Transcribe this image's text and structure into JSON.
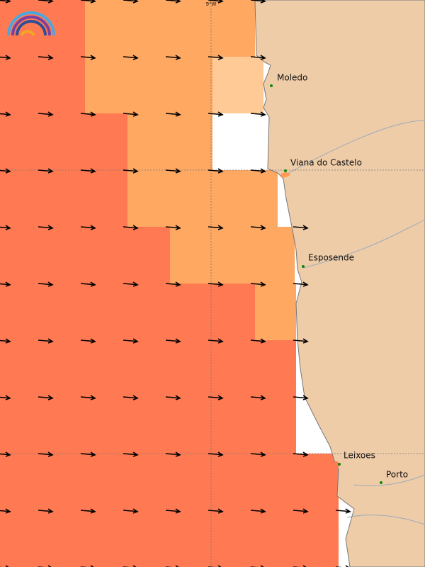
{
  "map": {
    "graticule_label": "9°W",
    "places": [
      {
        "name": "Moledo"
      },
      {
        "name": "Viana do Castelo"
      },
      {
        "name": "Esposende"
      },
      {
        "name": "Leixoes"
      },
      {
        "name": "Porto"
      }
    ]
  }
}
